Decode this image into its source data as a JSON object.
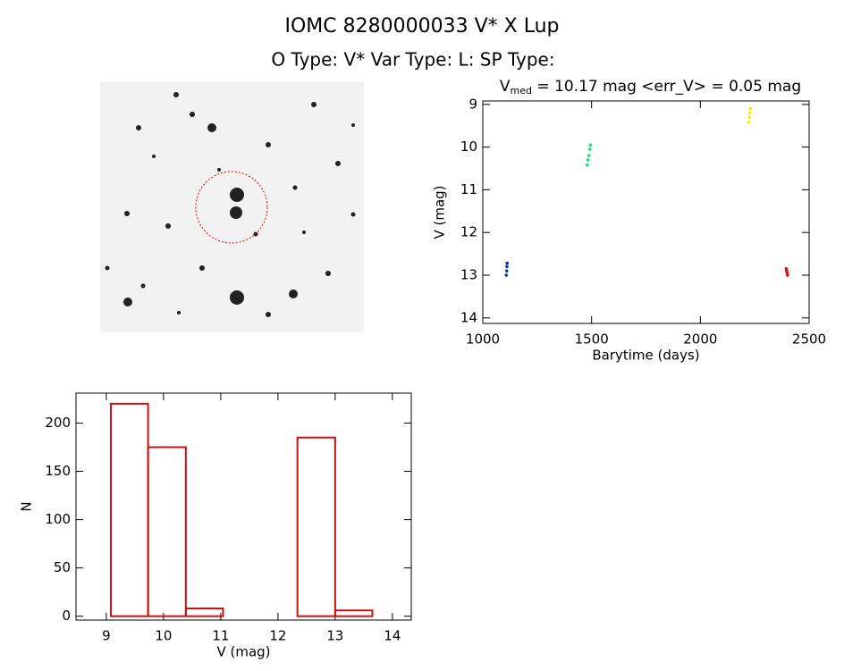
{
  "title": "IOMC 8280000033    V* X Lup",
  "subtitle": "O Type: V*  Var Type: L:  SP Type:",
  "chart_data": [
    {
      "type": "scatter",
      "title": [
        "V",
        "med",
        " = 10.17 mag <err_V> = 0.05 mag"
      ],
      "xlabel": "Barytime (days)",
      "ylabel": "V (mag)",
      "xlim": [
        1000,
        2500
      ],
      "xticks": [
        1000,
        1500,
        2000,
        2500
      ],
      "ylim": [
        8.92,
        14.13
      ],
      "yinvert": true,
      "yticks": [
        9,
        10,
        11,
        12,
        13,
        14
      ],
      "series": [
        {
          "color": "#1030c8",
          "x": [
            1108,
            1110,
            1111,
            1112
          ],
          "values": [
            13.0,
            12.9,
            12.8,
            12.72
          ]
        },
        {
          "color": "#20e070",
          "x": [
            1480,
            1484,
            1488,
            1492,
            1495
          ],
          "values": [
            10.42,
            10.3,
            10.2,
            10.05,
            9.95
          ]
        },
        {
          "color": "#f0f000",
          "x": [
            2222,
            2225,
            2228,
            2230
          ],
          "values": [
            9.42,
            9.3,
            9.2,
            9.1
          ]
        },
        {
          "color": "#e01010",
          "x": [
            2395,
            2397,
            2399,
            2401
          ],
          "values": [
            12.85,
            12.9,
            12.95,
            13.0
          ]
        }
      ]
    },
    {
      "type": "histogram",
      "xlabel": "V (mag)",
      "ylabel": "N",
      "color": "#cc1111",
      "bins": [
        9.08,
        9.73,
        10.39,
        11.04,
        11.69,
        12.34,
        13.0,
        13.65
      ],
      "values": [
        220,
        175,
        8,
        0,
        0,
        185,
        6
      ],
      "xlim": [
        8.47,
        14.33
      ],
      "xticks": [
        9,
        10,
        11,
        12,
        13,
        14
      ],
      "ylim": [
        -4,
        231
      ],
      "yticks": [
        0,
        50,
        100,
        150,
        200
      ]
    }
  ]
}
